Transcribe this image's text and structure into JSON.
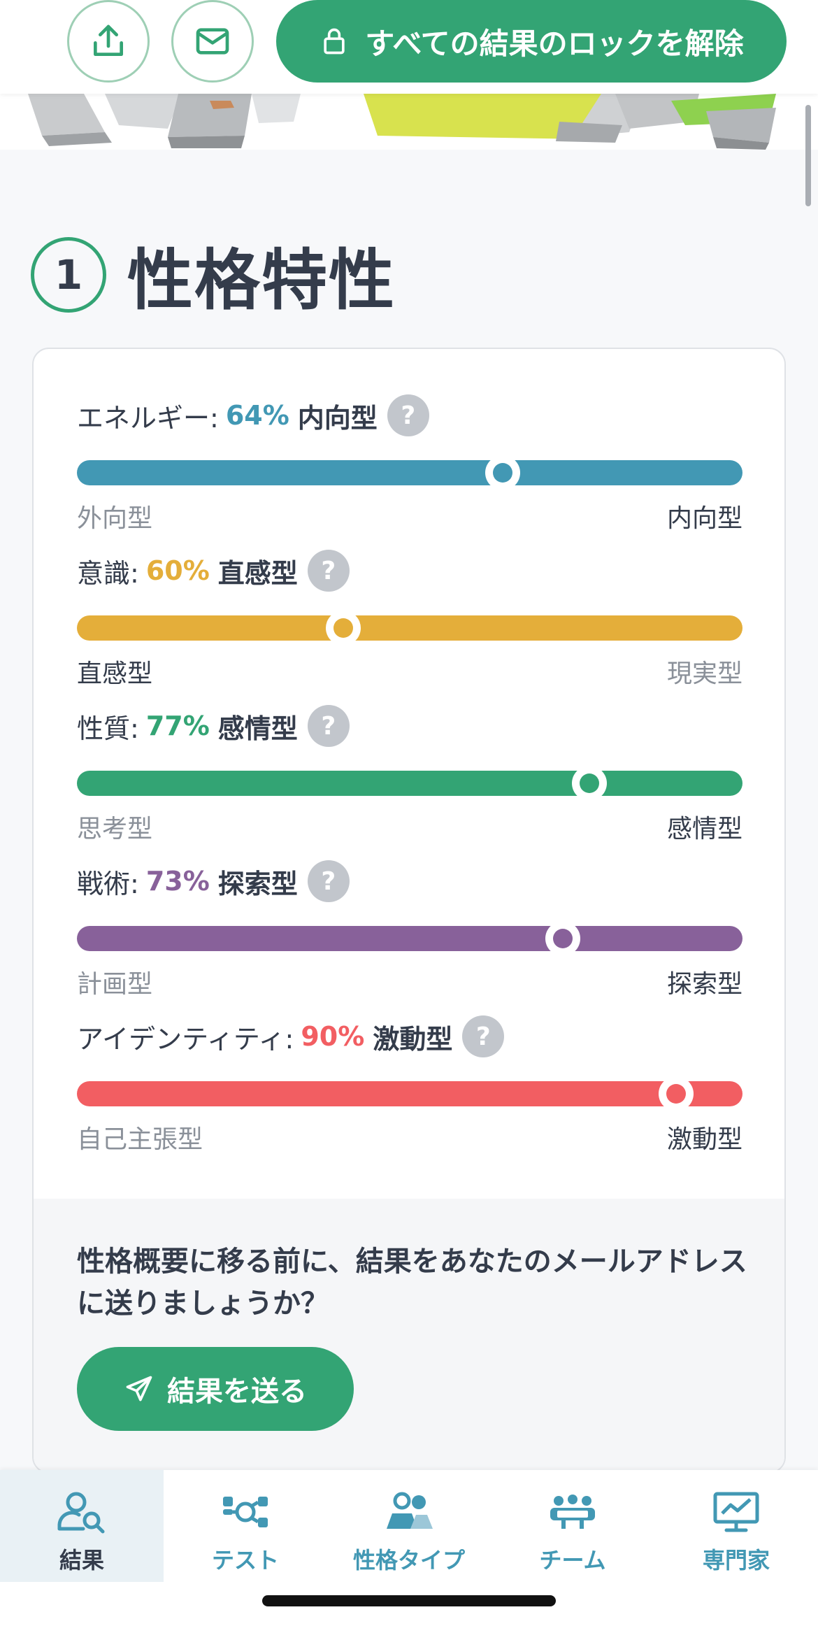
{
  "topbar": {
    "share_icon": "share-icon",
    "mail_icon": "mail-icon",
    "unlock_label": "すべての結果のロックを解除",
    "lock_icon": "lock-icon"
  },
  "section": {
    "number": "1",
    "title": "性格特性"
  },
  "traits": [
    {
      "category": "エネルギー:",
      "percent": "64%",
      "type": "内向型",
      "value": 64,
      "left_pole": "外向型",
      "right_pole": "内向型",
      "color": "#4298b4",
      "highlight": "right"
    },
    {
      "category": "意識:",
      "percent": "60%",
      "type": "直感型",
      "value": 60,
      "left_pole": "直感型",
      "right_pole": "現実型",
      "color": "#e4ae3a",
      "highlight": "left"
    },
    {
      "category": "性質:",
      "percent": "77%",
      "type": "感情型",
      "value": 77,
      "left_pole": "思考型",
      "right_pole": "感情型",
      "color": "#33a474",
      "highlight": "right"
    },
    {
      "category": "戦術:",
      "percent": "73%",
      "type": "探索型",
      "value": 73,
      "left_pole": "計画型",
      "right_pole": "探索型",
      "color": "#88619a",
      "highlight": "right"
    },
    {
      "category": "アイデンティティ:",
      "percent": "90%",
      "type": "激動型",
      "value": 90,
      "left_pole": "自己主張型",
      "right_pole": "激動型",
      "color": "#f25e62",
      "highlight": "right"
    }
  ],
  "help_glyph": "?",
  "cta": {
    "text": "性格概要に移る前に、結果をあなたのメールアドレスに送りましょうか？",
    "button_label": "結果を送る",
    "button_icon": "send-icon"
  },
  "nav": [
    {
      "label": "結果",
      "icon": "results-icon",
      "active": true
    },
    {
      "label": "テスト",
      "icon": "test-icon",
      "active": false
    },
    {
      "label": "性格タイプ",
      "icon": "personality-types-icon",
      "active": false
    },
    {
      "label": "チーム",
      "icon": "teams-icon",
      "active": false
    },
    {
      "label": "専門家",
      "icon": "professional-icon",
      "active": false
    }
  ]
}
